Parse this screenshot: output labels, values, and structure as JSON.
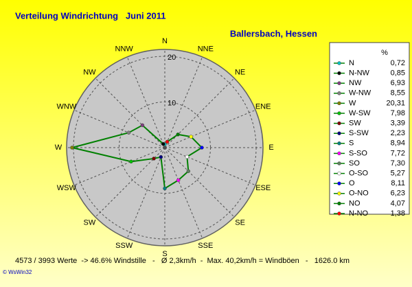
{
  "chart_data": {
    "type": "radar",
    "title": "Verteilung Windrichtung   Juni 2011",
    "subtitle": "Ballersbach, Hessen",
    "axis_labels": [
      "N",
      "NNE",
      "NE",
      "ENE",
      "E",
      "ESE",
      "SE",
      "SSE",
      "S",
      "SSW",
      "SW",
      "WSW",
      "W",
      "WNW",
      "NW",
      "NNW"
    ],
    "rlim": [
      0,
      21.5
    ],
    "rticks": [
      10,
      20
    ],
    "line_color": "#008000",
    "legend_title": "%",
    "categories": [
      "N",
      "N-NW",
      "NW",
      "W-NW",
      "W",
      "W-SW",
      "SW",
      "S-SW",
      "S",
      "S-SO",
      "SO",
      "O-SO",
      "O",
      "O-NO",
      "NO",
      "N-NO"
    ],
    "values": [
      0.72,
      0.85,
      6.93,
      8.55,
      20.31,
      7.98,
      3.39,
      2.23,
      8.94,
      7.72,
      7.3,
      5.27,
      8.11,
      6.23,
      4.07,
      1.38
    ],
    "value_labels": [
      "0,72",
      "0,85",
      "6,93",
      "8,55",
      "20,31",
      "7,98",
      "3,39",
      "2,23",
      "8,94",
      "7,72",
      "7,30",
      "5,27",
      "8,11",
      "6,23",
      "4,07",
      "1,38"
    ],
    "colors": [
      "#00c0c0",
      "#000000",
      "#804080",
      "#808080",
      "#808000",
      "#00c000",
      "#800000",
      "#000080",
      "#008080",
      "#ff00ff",
      "#608060",
      "#ffffff",
      "#0000ff",
      "#ffff00",
      "#008000",
      "#ff0000"
    ],
    "footer": "4573 / 3993 Werte  -> 46.6% Windstille   -   Ø 2,3km/h  -  Max. 40,2km/h = Windböen   -   1626.0 km",
    "credit": "© WsWin32"
  }
}
